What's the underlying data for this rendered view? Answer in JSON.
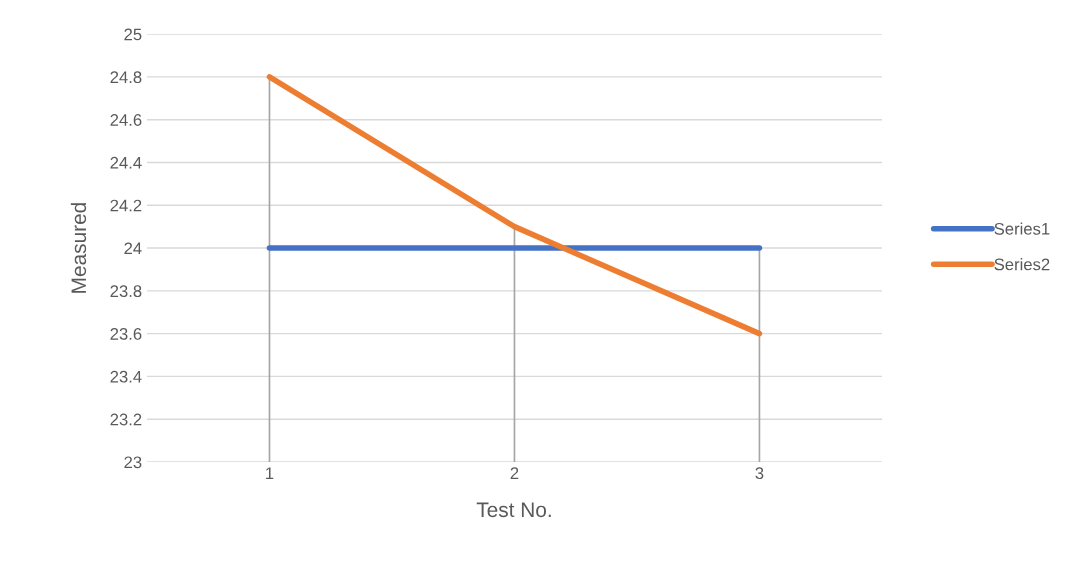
{
  "chart_data": {
    "type": "line",
    "xlabel": "Test No.",
    "ylabel": "Measured",
    "categories": [
      "1",
      "2",
      "3"
    ],
    "series": [
      {
        "name": "Series1",
        "color": "#4472c4",
        "values": [
          24,
          24,
          24
        ],
        "errors": [
          null,
          null,
          [
            23,
            24
          ]
        ]
      },
      {
        "name": "Series2",
        "color": "#ed7d31",
        "values": [
          24.8,
          24.1,
          23.6
        ],
        "errors": [
          [
            23,
            24.8
          ],
          [
            23,
            24.1
          ],
          null
        ]
      }
    ],
    "ylim": [
      23,
      25
    ],
    "yticks": [
      23,
      23.2,
      23.4,
      23.6,
      23.8,
      24,
      24.2,
      24.4,
      24.6,
      24.8,
      25
    ],
    "grid": "y",
    "legend": "right",
    "marker": "none",
    "line_style": "solid"
  }
}
